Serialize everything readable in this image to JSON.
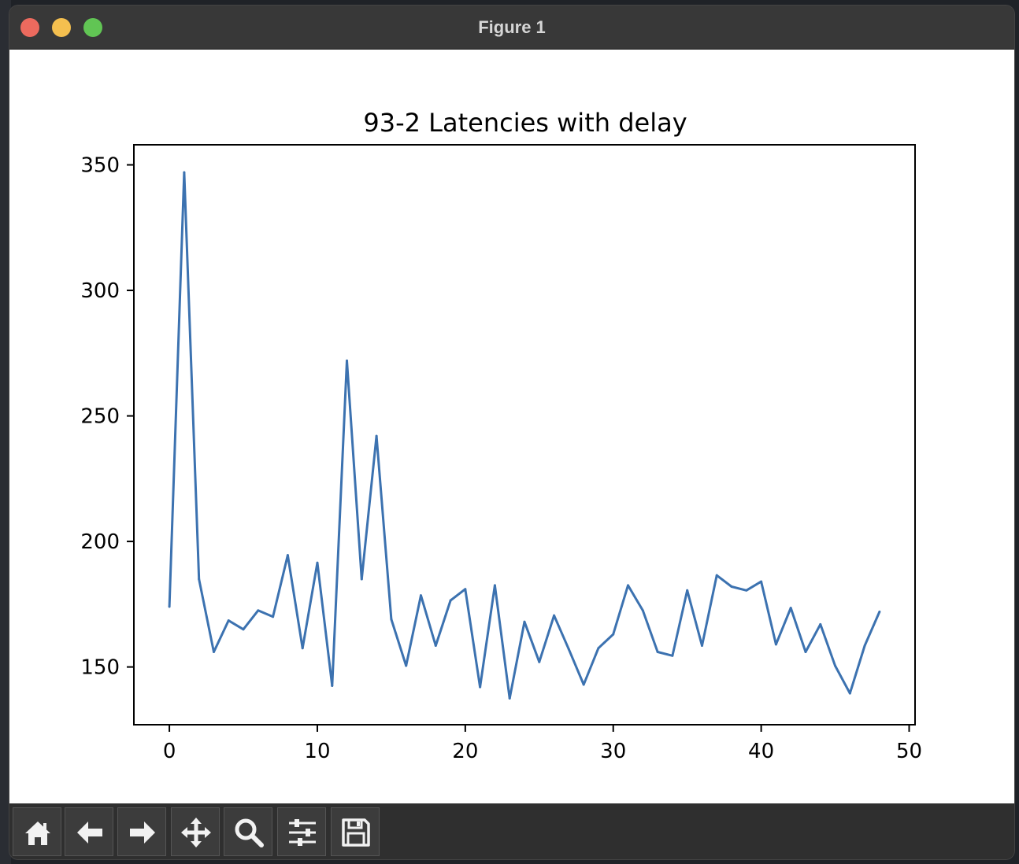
{
  "window": {
    "title": "Figure 1"
  },
  "toolbar": {
    "tools": [
      {
        "icon": "home-icon"
      },
      {
        "icon": "back-arrow-icon"
      },
      {
        "icon": "forward-arrow-icon"
      },
      {
        "icon": "pan-move-icon"
      },
      {
        "icon": "zoom-icon"
      },
      {
        "icon": "configure-subplots-icon"
      },
      {
        "icon": "save-icon"
      }
    ]
  },
  "chart_data": {
    "type": "line",
    "title": "93-2 Latencies with delay",
    "xlabel": "",
    "ylabel": "",
    "xlim": [
      -2.4,
      50.4
    ],
    "ylim": [
      127,
      358
    ],
    "xticks": [
      0,
      10,
      20,
      30,
      40,
      50
    ],
    "yticks": [
      150,
      200,
      250,
      300,
      350
    ],
    "grid": false,
    "line_color": "#3c72b0",
    "series": [
      {
        "x": [
          0,
          1,
          2,
          3,
          4,
          5,
          6,
          7,
          8,
          9,
          10,
          11,
          12,
          13,
          14,
          15,
          16,
          17,
          18,
          19,
          20,
          21,
          22,
          23,
          24,
          25,
          26,
          27,
          28,
          29,
          30,
          31,
          32,
          33,
          34,
          35,
          36,
          37,
          38,
          39,
          40,
          41,
          42,
          43,
          44,
          45,
          46,
          47,
          48
        ],
        "values": [
          174,
          347,
          185,
          156,
          168.5,
          165,
          172.5,
          170,
          194.5,
          157.5,
          191.5,
          142.5,
          272,
          185,
          242,
          169,
          150.5,
          178.5,
          158.5,
          176.5,
          181,
          142,
          182.5,
          137.5,
          168,
          152,
          170.5,
          157,
          143,
          157.5,
          163,
          182.5,
          172.5,
          156,
          154.5,
          180.5,
          158.5,
          186.5,
          182,
          180.5,
          184,
          159,
          173.5,
          156,
          167,
          150.5,
          139.5,
          158.5,
          172
        ]
      }
    ]
  }
}
